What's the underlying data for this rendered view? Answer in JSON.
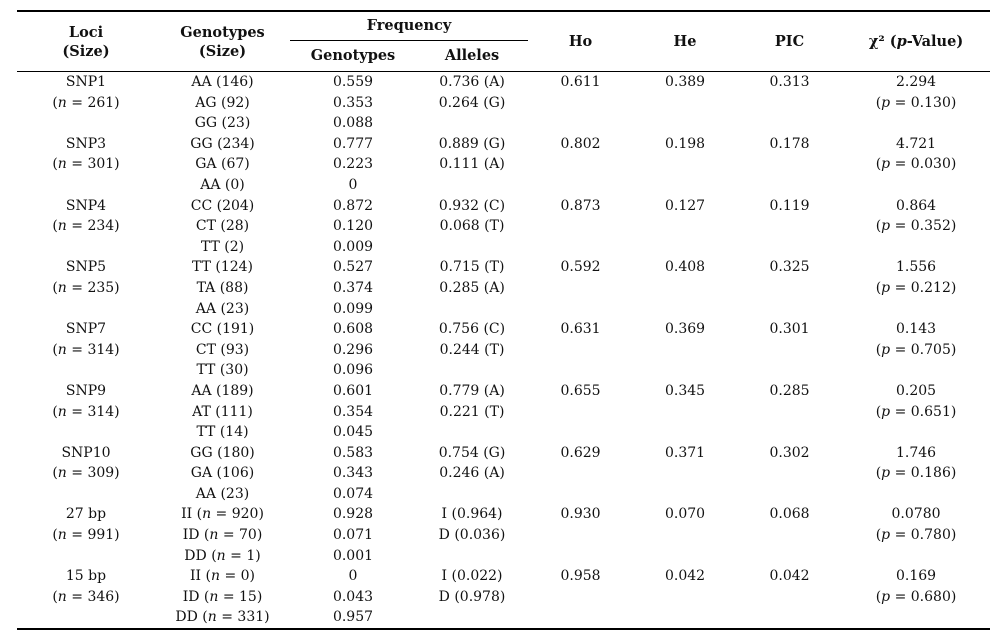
{
  "style": {
    "rule_color": "#000000",
    "text_color": "#111111",
    "background": "#ffffff"
  },
  "table": {
    "header": {
      "loci_l1": "Loci",
      "loci_l2": "(Size)",
      "genotypes_l1": "Genotypes",
      "genotypes_l2": "(Size)",
      "frequency": "Frequency",
      "freq_genotypes": "Genotypes",
      "freq_alleles": "Alleles",
      "ho": "Ho",
      "he": "He",
      "pic": "PIC",
      "chi": "χ² (p-Value)"
    },
    "rows": [
      {
        "locus": "SNP1",
        "size": "(n = 261)",
        "genotypes": [
          "AA (146)",
          "AG (92)",
          "GG (23)"
        ],
        "genotype_freq": [
          "0.559",
          "0.353",
          "0.088"
        ],
        "allele_freq": [
          "0.736 (A)",
          "0.264 (G)",
          ""
        ],
        "ho": "0.611",
        "he": "0.389",
        "pic": "0.313",
        "chi": "2.294",
        "p_value": "(p = 0.130)"
      },
      {
        "locus": "SNP3",
        "size": "(n = 301)",
        "genotypes": [
          "GG (234)",
          "GA (67)",
          "AA (0)"
        ],
        "genotype_freq": [
          "0.777",
          "0.223",
          "0"
        ],
        "allele_freq": [
          "0.889 (G)",
          "0.111 (A)",
          ""
        ],
        "ho": "0.802",
        "he": "0.198",
        "pic": "0.178",
        "chi": "4.721",
        "p_value": "(p = 0.030)"
      },
      {
        "locus": "SNP4",
        "size": "(n = 234)",
        "genotypes": [
          "CC (204)",
          "CT (28)",
          "TT (2)"
        ],
        "genotype_freq": [
          "0.872",
          "0.120",
          "0.009"
        ],
        "allele_freq": [
          "0.932 (C)",
          "0.068 (T)",
          ""
        ],
        "ho": "0.873",
        "he": "0.127",
        "pic": "0.119",
        "chi": "0.864",
        "p_value": "(p = 0.352)"
      },
      {
        "locus": "SNP5",
        "size": "(n = 235)",
        "genotypes": [
          "TT (124)",
          "TA (88)",
          "AA (23)"
        ],
        "genotype_freq": [
          "0.527",
          "0.374",
          "0.099"
        ],
        "allele_freq": [
          "0.715 (T)",
          "0.285 (A)",
          ""
        ],
        "ho": "0.592",
        "he": "0.408",
        "pic": "0.325",
        "chi": "1.556",
        "p_value": "(p = 0.212)"
      },
      {
        "locus": "SNP7",
        "size": "(n = 314)",
        "genotypes": [
          "CC (191)",
          "CT (93)",
          "TT (30)"
        ],
        "genotype_freq": [
          "0.608",
          "0.296",
          "0.096"
        ],
        "allele_freq": [
          "0.756 (C)",
          "0.244 (T)",
          ""
        ],
        "ho": "0.631",
        "he": "0.369",
        "pic": "0.301",
        "chi": "0.143",
        "p_value": "(p = 0.705)"
      },
      {
        "locus": "SNP9",
        "size": "(n = 314)",
        "genotypes": [
          "AA (189)",
          "AT (111)",
          "TT (14)"
        ],
        "genotype_freq": [
          "0.601",
          "0.354",
          "0.045"
        ],
        "allele_freq": [
          "0.779 (A)",
          "0.221 (T)",
          ""
        ],
        "ho": "0.655",
        "he": "0.345",
        "pic": "0.285",
        "chi": "0.205",
        "p_value": "(p = 0.651)"
      },
      {
        "locus": "SNP10",
        "size": "(n = 309)",
        "genotypes": [
          "GG (180)",
          "GA (106)",
          "AA (23)"
        ],
        "genotype_freq": [
          "0.583",
          "0.343",
          "0.074"
        ],
        "allele_freq": [
          "0.754 (G)",
          "0.246 (A)",
          ""
        ],
        "ho": "0.629",
        "he": "0.371",
        "pic": "0.302",
        "chi": "1.746",
        "p_value": "(p = 0.186)"
      },
      {
        "locus": "27 bp",
        "size": "(n = 991)",
        "genotypes": [
          "II (n = 920)",
          "ID (n = 70)",
          "DD (n = 1)"
        ],
        "genotype_freq": [
          "0.928",
          "0.071",
          "0.001"
        ],
        "allele_freq": [
          "I (0.964)",
          "D (0.036)",
          ""
        ],
        "ho": "0.930",
        "he": "0.070",
        "pic": "0.068",
        "chi": "0.0780",
        "p_value": "(p = 0.780)"
      },
      {
        "locus": "15 bp",
        "size": "(n = 346)",
        "genotypes": [
          "II (n = 0)",
          "ID (n = 15)",
          "DD (n = 331)"
        ],
        "genotype_freq": [
          "0",
          "0.043",
          "0.957"
        ],
        "allele_freq": [
          "I (0.022)",
          "D (0.978)",
          ""
        ],
        "ho": "0.958",
        "he": "0.042",
        "pic": "0.042",
        "chi": "0.169",
        "p_value": "(p = 0.680)"
      }
    ]
  }
}
